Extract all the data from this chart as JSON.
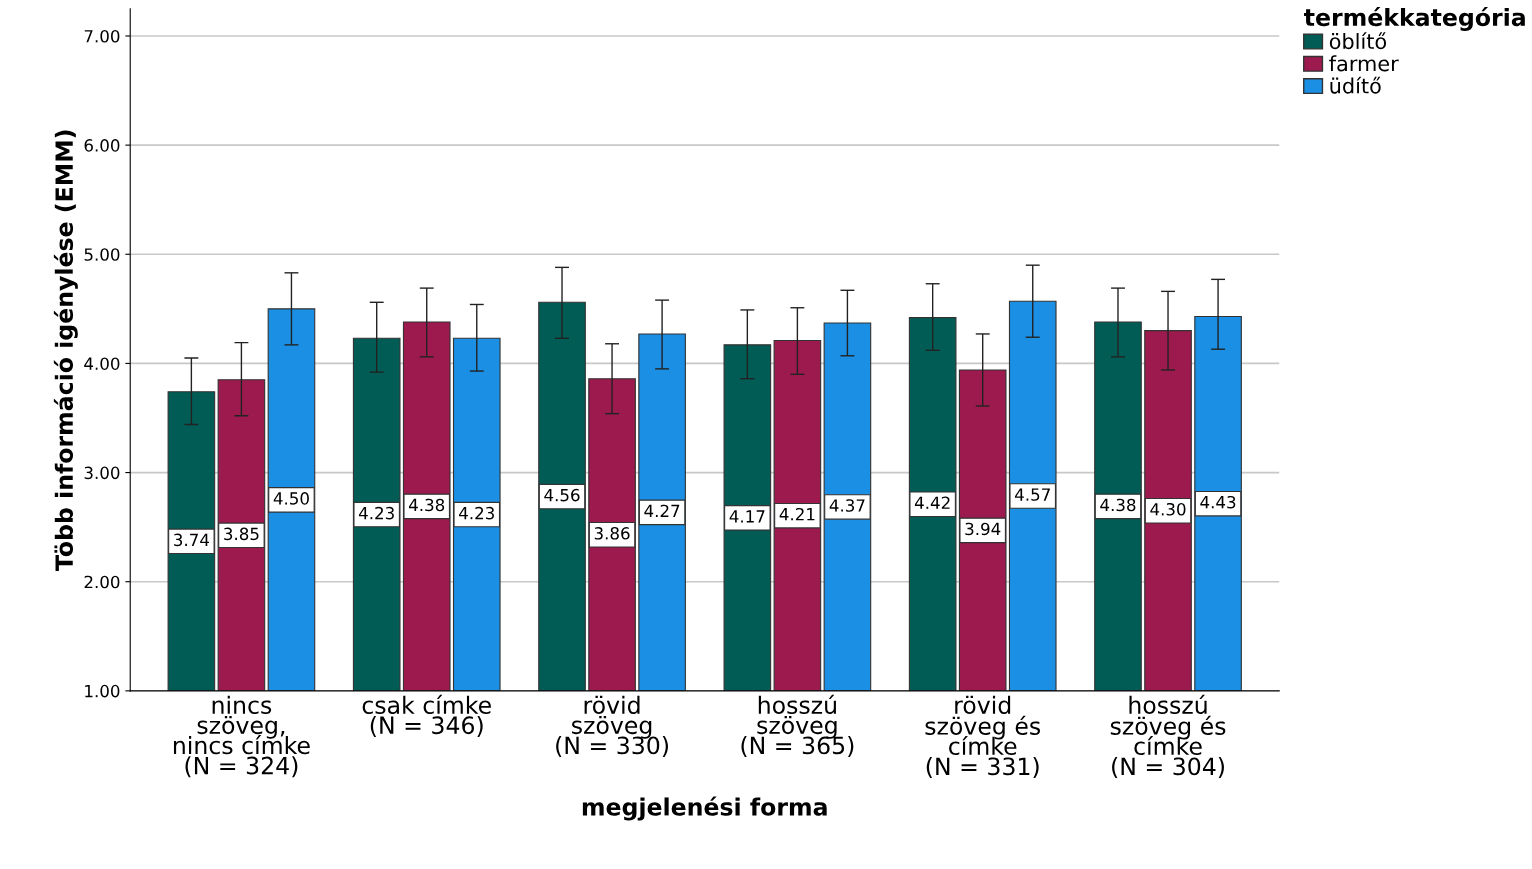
{
  "chart_data": {
    "type": "bar",
    "xlabel": "megjelenési forma",
    "ylabel": "Több információ igénylése (EMM)",
    "legend_title": "termékkategória",
    "categories": [
      "nincs\nszöveg,\nnincs címke\n(N = 324)",
      "csak címke\n(N = 346)",
      "rövid\nszöveg\n(N = 330)",
      "hosszú\nszöveg\n(N = 365)",
      "rövid\nszöveg és\ncímke\n(N = 331)",
      "hosszú\nszöveg és\ncímke\n(N = 304)"
    ],
    "series": [
      {
        "name": "öblítő",
        "color": "#005c55",
        "values": [
          3.74,
          4.23,
          4.56,
          4.17,
          4.42,
          4.38
        ],
        "value_labels": [
          "3.74",
          "4.23",
          "4.56",
          "4.17",
          "4.42",
          "4.38"
        ],
        "errors": [
          [
            3.44,
            4.05
          ],
          [
            3.92,
            4.56
          ],
          [
            4.23,
            4.88
          ],
          [
            3.86,
            4.49
          ],
          [
            4.12,
            4.73
          ],
          [
            4.06,
            4.69
          ]
        ]
      },
      {
        "name": "farmer",
        "color": "#9c1a4e",
        "values": [
          3.85,
          4.38,
          3.86,
          4.21,
          3.94,
          4.3
        ],
        "value_labels": [
          "3.85",
          "4.38",
          "3.86",
          "4.21",
          "3.94",
          "4.30"
        ],
        "errors": [
          [
            3.52,
            4.19
          ],
          [
            4.06,
            4.69
          ],
          [
            3.54,
            4.18
          ],
          [
            3.9,
            4.51
          ],
          [
            3.61,
            4.27
          ],
          [
            3.94,
            4.66
          ]
        ]
      },
      {
        "name": "üdítő",
        "color": "#1a8fe3",
        "values": [
          4.5,
          4.23,
          4.27,
          4.37,
          4.57,
          4.43
        ],
        "value_labels": [
          "4.50",
          "4.23",
          "4.27",
          "4.37",
          "4.57",
          "4.43"
        ],
        "errors": [
          [
            4.17,
            4.83
          ],
          [
            3.93,
            4.54
          ],
          [
            3.95,
            4.58
          ],
          [
            4.07,
            4.67
          ],
          [
            4.24,
            4.9
          ],
          [
            4.13,
            4.77
          ]
        ]
      }
    ],
    "ylim": [
      1,
      7.25
    ],
    "yticks": [
      {
        "value": 1,
        "label": "1.00"
      },
      {
        "value": 2,
        "label": "2.00"
      },
      {
        "value": 3,
        "label": "3.00"
      },
      {
        "value": 4,
        "label": "4.00"
      },
      {
        "value": 5,
        "label": "5.00"
      },
      {
        "value": 6,
        "label": "6.00"
      },
      {
        "value": 7,
        "label": "7.00"
      }
    ],
    "grid": "y",
    "legend": "top right"
  }
}
